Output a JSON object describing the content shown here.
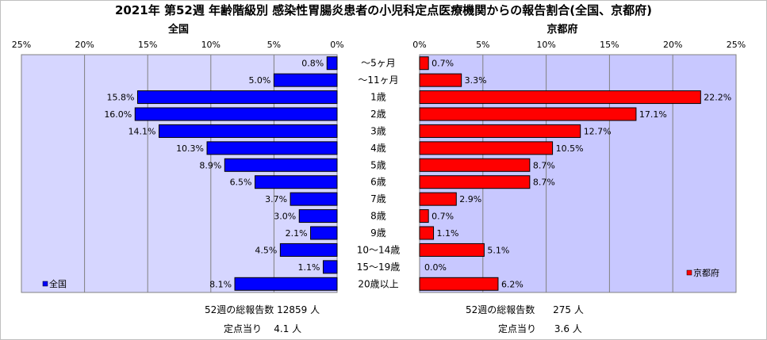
{
  "title": "2021年 第52週 年齢階級別 感染性胃腸炎患者の小児科定点医療機関からの報告割合(全国、京都府)",
  "colors": {
    "national_bar": "#0000ff",
    "kyoto_bar": "#ff0000",
    "plot_bg_left": "#d6d6ff",
    "plot_bg_right": "#c8c8ff",
    "grid": "#808080"
  },
  "chart_data": [
    {
      "type": "bar",
      "orientation": "horizontal",
      "direction": "right-to-left",
      "panel_title": "全国",
      "legend": "全国",
      "legend_position": "bottom-left",
      "axis_ticks": [
        "25%",
        "20%",
        "15%",
        "10%",
        "5%",
        "0%"
      ],
      "xlim": [
        0,
        25
      ],
      "grid": true,
      "categories": [
        "～5ヶ月",
        "～11ヶ月",
        "1歳",
        "2歳",
        "3歳",
        "4歳",
        "5歳",
        "6歳",
        "7歳",
        "8歳",
        "9歳",
        "10～14歳",
        "15～19歳",
        "20歳以上"
      ],
      "values": [
        0.8,
        5.0,
        15.8,
        16.0,
        14.1,
        10.3,
        8.9,
        6.5,
        3.7,
        3.0,
        2.1,
        4.5,
        1.1,
        8.1
      ],
      "labels": [
        "0.8%",
        "5.0%",
        "15.8%",
        "16.0%",
        "14.1%",
        "10.3%",
        "8.9%",
        "6.5%",
        "3.7%",
        "3.0%",
        "2.1%",
        "4.5%",
        "1.1%",
        "8.1%"
      ]
    },
    {
      "type": "bar",
      "orientation": "horizontal",
      "direction": "left-to-right",
      "panel_title": "京都府",
      "legend": "京都府",
      "legend_position": "bottom-right",
      "axis_ticks": [
        "0%",
        "5%",
        "10%",
        "15%",
        "20%",
        "25%"
      ],
      "xlim": [
        0,
        25
      ],
      "grid": true,
      "categories": [
        "～5ヶ月",
        "～11ヶ月",
        "1歳",
        "2歳",
        "3歳",
        "4歳",
        "5歳",
        "6歳",
        "7歳",
        "8歳",
        "9歳",
        "10～14歳",
        "15～19歳",
        "20歳以上"
      ],
      "values": [
        0.7,
        3.3,
        22.2,
        17.1,
        12.7,
        10.5,
        8.7,
        8.7,
        2.9,
        0.7,
        1.1,
        5.1,
        0.0,
        6.2
      ],
      "labels": [
        "0.7%",
        "3.3%",
        "22.2%",
        "17.1%",
        "12.7%",
        "10.5%",
        "8.7%",
        "8.7%",
        "2.9%",
        "0.7%",
        "1.1%",
        "5.1%",
        "0.0%",
        "6.2%"
      ]
    }
  ],
  "footer": {
    "national_total": "52週の総報告数 12859 人",
    "national_per_site": "定点当り    4.1 人",
    "kyoto_total": "52週の総報告数      275 人",
    "kyoto_per_site": "定点当り      3.6 人"
  }
}
